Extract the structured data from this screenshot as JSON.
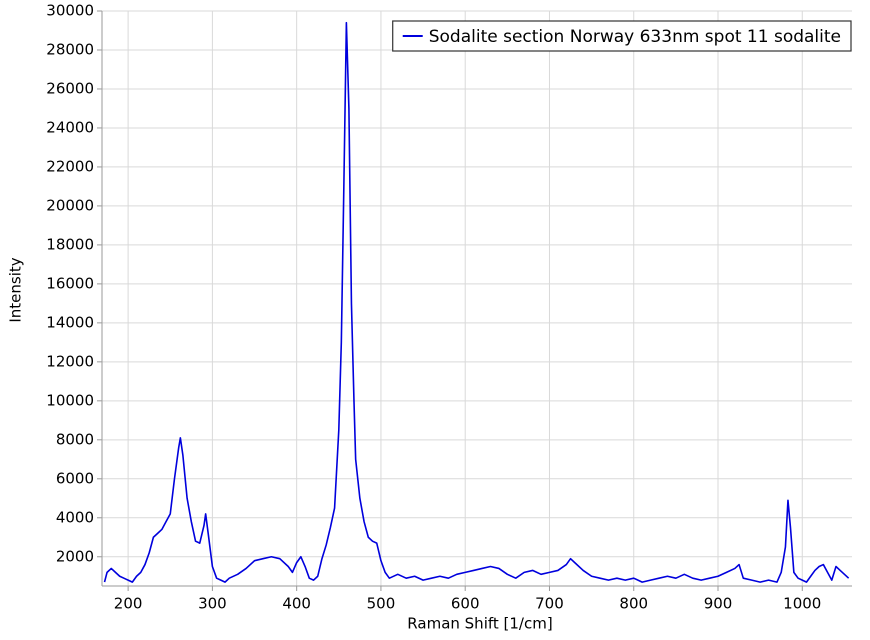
{
  "chart_data": {
    "type": "line",
    "x_label": "Raman Shift [1/cm]",
    "y_label": "Intensity",
    "xlim": [
      169,
      1059
    ],
    "ylim": [
      500,
      30000
    ],
    "xticks": [
      200,
      300,
      400,
      500,
      600,
      700,
      800,
      900,
      1000
    ],
    "yticks": [
      2000,
      4000,
      6000,
      8000,
      10000,
      12000,
      14000,
      16000,
      18000,
      20000,
      22000,
      24000,
      26000,
      28000,
      30000
    ],
    "grid": true,
    "legend": "upper right",
    "x": [
      172,
      175,
      180,
      185,
      190,
      195,
      200,
      205,
      210,
      215,
      220,
      225,
      230,
      235,
      240,
      245,
      250,
      255,
      260,
      262,
      265,
      270,
      275,
      280,
      285,
      290,
      292,
      295,
      300,
      305,
      310,
      315,
      320,
      330,
      340,
      350,
      360,
      370,
      380,
      390,
      395,
      400,
      405,
      410,
      415,
      420,
      425,
      430,
      435,
      440,
      445,
      450,
      453,
      456,
      459,
      462,
      465,
      468,
      470,
      475,
      480,
      485,
      490,
      495,
      500,
      505,
      510,
      520,
      530,
      540,
      550,
      560,
      570,
      580,
      590,
      600,
      610,
      620,
      630,
      640,
      650,
      660,
      670,
      680,
      690,
      700,
      710,
      720,
      725,
      730,
      740,
      750,
      760,
      770,
      780,
      790,
      800,
      810,
      820,
      830,
      840,
      850,
      860,
      870,
      880,
      890,
      900,
      910,
      920,
      925,
      930,
      940,
      950,
      960,
      970,
      975,
      980,
      983,
      986,
      990,
      995,
      1000,
      1005,
      1010,
      1015,
      1020,
      1025,
      1030,
      1035,
      1040,
      1045,
      1050,
      1055
    ],
    "series": [
      {
        "name": "Sodalite section Norway 633nm spot 11 sodalite",
        "color": "#0000dd",
        "values": [
          700,
          1200,
          1400,
          1200,
          1000,
          900,
          800,
          700,
          1000,
          1200,
          1600,
          2200,
          3000,
          3200,
          3400,
          3800,
          4200,
          6000,
          7600,
          8100,
          7200,
          5000,
          3800,
          2800,
          2700,
          3600,
          4200,
          3200,
          1500,
          900,
          800,
          700,
          900,
          1100,
          1400,
          1800,
          1900,
          2000,
          1900,
          1500,
          1200,
          1700,
          2000,
          1500,
          900,
          800,
          1000,
          1900,
          2600,
          3500,
          4500,
          8500,
          13000,
          21000,
          29400,
          25000,
          15000,
          10000,
          7000,
          5000,
          3800,
          3000,
          2800,
          2700,
          1800,
          1200,
          900,
          1100,
          900,
          1000,
          800,
          900,
          1000,
          900,
          1100,
          1200,
          1300,
          1400,
          1500,
          1400,
          1100,
          900,
          1200,
          1300,
          1100,
          1200,
          1300,
          1600,
          1900,
          1700,
          1300,
          1000,
          900,
          800,
          900,
          800,
          900,
          700,
          800,
          900,
          1000,
          900,
          1100,
          900,
          800,
          900,
          1000,
          1200,
          1400,
          1600,
          900,
          800,
          700,
          800,
          700,
          1200,
          2500,
          4900,
          3500,
          1200,
          900,
          800,
          700,
          1000,
          1300,
          1500,
          1600,
          1200,
          800,
          1500,
          1300,
          1100,
          900
        ]
      }
    ]
  }
}
